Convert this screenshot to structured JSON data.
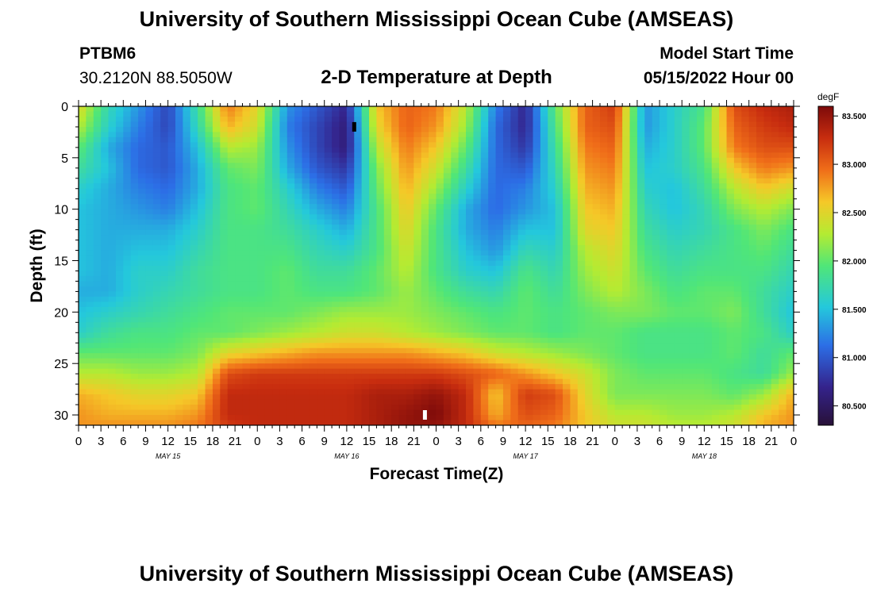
{
  "header": {
    "title": "University of Southern Mississippi Ocean Cube (AMSEAS)",
    "station": "PTBM6",
    "coords": "30.2120N  88.5050W",
    "subtitle": "2-D Temperature at Depth",
    "model_start_label": "Model Start Time",
    "model_start_value": "05/15/2022 Hour 00"
  },
  "footer": {
    "title": "University of Southern Mississippi Ocean Cube (AMSEAS)"
  },
  "chart_data": {
    "type": "heatmap",
    "title": "2-D Temperature at Depth",
    "xlabel": "Forecast Time(Z)",
    "ylabel": "Depth (ft)",
    "xlim": [
      0,
      96
    ],
    "ylim": [
      31,
      0
    ],
    "x_ticks": [
      0,
      3,
      6,
      9,
      12,
      15,
      18,
      21,
      24,
      27,
      30,
      33,
      36,
      39,
      42,
      45,
      48,
      51,
      54,
      57,
      60,
      63,
      66,
      69,
      72,
      75,
      78,
      81,
      84,
      87,
      90,
      93,
      96
    ],
    "x_tick_labels": [
      "0",
      "3",
      "6",
      "9",
      "12",
      "15",
      "18",
      "21",
      "0",
      "3",
      "6",
      "9",
      "12",
      "15",
      "18",
      "21",
      "0",
      "3",
      "6",
      "9",
      "12",
      "15",
      "18",
      "21",
      "0",
      "3",
      "6",
      "9",
      "12",
      "15",
      "18",
      "21",
      "0"
    ],
    "date_labels": [
      {
        "hour": 12,
        "text": "MAY 15"
      },
      {
        "hour": 36,
        "text": "MAY 16"
      },
      {
        "hour": 60,
        "text": "MAY 17"
      },
      {
        "hour": 84,
        "text": "MAY 18"
      }
    ],
    "y_ticks": [
      0,
      5,
      10,
      15,
      20,
      25,
      30
    ],
    "colorbar": {
      "unit": "degF",
      "range": [
        80.3,
        83.6
      ],
      "ticks": [
        83.5,
        83.0,
        82.5,
        82.0,
        81.5,
        81.0,
        80.5
      ],
      "tick_labels": [
        "83.500",
        "83.000",
        "82.500",
        "82.000",
        "81.500",
        "81.000",
        "80.500"
      ]
    },
    "markers": [
      {
        "hour": 37,
        "depth": 2,
        "color": "#000000"
      },
      {
        "hour": 46.5,
        "depth": 30,
        "color": "#ffffff"
      }
    ],
    "depth_levels_ft": [
      0,
      2,
      4,
      6,
      8,
      10,
      12,
      14,
      16,
      18,
      20,
      22,
      24,
      26,
      28,
      30,
      31
    ],
    "hours": [
      0,
      4,
      8,
      12,
      16,
      20,
      24,
      28,
      32,
      36,
      40,
      44,
      48,
      52,
      56,
      60,
      64,
      68,
      72,
      76,
      80,
      84,
      88,
      92,
      96
    ],
    "temperature_degF": [
      [
        82.5,
        81.7,
        81.3,
        80.9,
        81.8,
        82.9,
        82.5,
        81.3,
        81.0,
        80.7,
        82.6,
        83.0,
        82.9,
        82.3,
        81.2,
        80.7,
        82.0,
        83.0,
        83.2,
        81.3,
        81.6,
        81.9,
        83.1,
        83.3,
        83.4
      ],
      [
        82.3,
        81.6,
        81.2,
        80.9,
        81.7,
        82.7,
        82.4,
        81.2,
        80.9,
        80.6,
        82.5,
        83.0,
        82.8,
        82.2,
        81.1,
        80.7,
        81.9,
        83.0,
        83.1,
        81.3,
        81.6,
        82.0,
        83.0,
        83.2,
        83.3
      ],
      [
        82.0,
        81.4,
        81.1,
        81.0,
        81.5,
        82.3,
        82.2,
        81.3,
        80.9,
        80.6,
        82.3,
        82.9,
        82.6,
        82.0,
        81.1,
        80.8,
        81.8,
        82.9,
        83.0,
        81.4,
        81.6,
        82.0,
        82.9,
        83.1,
        83.1
      ],
      [
        81.8,
        81.5,
        81.1,
        81.0,
        81.4,
        82.0,
        82.1,
        81.4,
        81.0,
        80.8,
        82.1,
        82.8,
        82.4,
        81.8,
        81.1,
        81.0,
        81.7,
        82.8,
        82.9,
        81.5,
        81.6,
        81.9,
        82.6,
        82.9,
        82.8
      ],
      [
        81.6,
        81.4,
        81.2,
        81.1,
        81.4,
        81.9,
        82.0,
        81.6,
        81.2,
        81.0,
        82.0,
        82.7,
        82.2,
        81.6,
        81.1,
        81.2,
        81.6,
        82.7,
        82.8,
        81.6,
        81.5,
        81.8,
        82.3,
        82.6,
        82.4
      ],
      [
        81.5,
        81.4,
        81.3,
        81.2,
        81.5,
        81.9,
        82.0,
        81.7,
        81.4,
        81.2,
        81.9,
        82.6,
        82.0,
        81.4,
        81.1,
        81.3,
        81.5,
        82.6,
        82.7,
        81.7,
        81.5,
        81.7,
        82.1,
        82.3,
        82.1
      ],
      [
        81.5,
        81.4,
        81.4,
        81.4,
        81.6,
        81.9,
        81.9,
        81.8,
        81.6,
        81.4,
        81.9,
        82.5,
        81.9,
        81.4,
        81.2,
        81.5,
        81.5,
        82.5,
        82.6,
        81.8,
        81.6,
        81.7,
        81.9,
        82.1,
        81.9
      ],
      [
        81.5,
        81.4,
        81.5,
        81.5,
        81.7,
        81.9,
        81.9,
        81.9,
        81.7,
        81.6,
        81.9,
        82.4,
        81.9,
        81.5,
        81.3,
        81.7,
        81.6,
        82.3,
        82.5,
        81.9,
        81.7,
        81.8,
        81.9,
        82.0,
        81.8
      ],
      [
        81.5,
        81.4,
        81.6,
        81.6,
        81.8,
        81.9,
        81.9,
        82.0,
        81.8,
        81.8,
        82.0,
        82.3,
        81.9,
        81.6,
        81.5,
        81.9,
        81.7,
        82.2,
        82.4,
        82.0,
        81.8,
        81.9,
        81.9,
        81.9,
        81.7
      ],
      [
        81.4,
        81.4,
        81.6,
        81.7,
        81.8,
        81.9,
        81.9,
        82.0,
        81.9,
        81.9,
        82.0,
        82.2,
        82.0,
        81.8,
        81.7,
        82.0,
        81.8,
        82.1,
        82.3,
        82.1,
        81.9,
        82.0,
        82.0,
        81.8,
        81.6
      ],
      [
        81.5,
        81.6,
        81.7,
        81.8,
        81.9,
        82.0,
        82.0,
        82.0,
        82.1,
        82.2,
        82.2,
        82.2,
        82.1,
        82.0,
        81.9,
        82.0,
        81.9,
        82.0,
        82.1,
        82.1,
        82.0,
        82.0,
        82.1,
        81.8,
        81.5
      ],
      [
        81.6,
        81.8,
        81.9,
        81.9,
        82.0,
        82.0,
        82.1,
        82.2,
        82.3,
        82.4,
        82.4,
        82.3,
        82.2,
        82.1,
        82.0,
        82.0,
        81.9,
        82.0,
        82.0,
        81.9,
        81.9,
        81.9,
        82.0,
        81.9,
        81.6
      ],
      [
        82.0,
        82.0,
        82.0,
        82.0,
        82.1,
        82.5,
        82.6,
        82.7,
        82.8,
        82.8,
        82.8,
        82.8,
        82.7,
        82.6,
        82.4,
        82.3,
        82.2,
        82.1,
        82.0,
        81.9,
        81.9,
        81.9,
        82.0,
        81.8,
        82.0
      ],
      [
        82.3,
        82.3,
        82.2,
        82.2,
        82.3,
        83.1,
        83.2,
        83.2,
        83.2,
        83.2,
        83.2,
        83.2,
        83.2,
        83.1,
        83.0,
        82.8,
        82.6,
        82.4,
        82.1,
        82.0,
        82.0,
        82.0,
        81.9,
        81.8,
        82.2
      ],
      [
        82.7,
        82.6,
        82.5,
        82.5,
        82.6,
        83.3,
        83.3,
        83.3,
        83.3,
        83.3,
        83.4,
        83.4,
        83.5,
        83.3,
        82.6,
        83.2,
        83.1,
        82.5,
        82.1,
        82.1,
        82.1,
        82.1,
        82.0,
        82.2,
        82.7
      ],
      [
        82.8,
        82.7,
        82.7,
        82.7,
        82.8,
        83.3,
        83.3,
        83.3,
        83.3,
        83.3,
        83.4,
        83.5,
        83.6,
        83.3,
        82.7,
        83.1,
        83.0,
        82.6,
        82.3,
        82.3,
        82.2,
        82.2,
        82.3,
        82.6,
        82.8
      ],
      [
        82.8,
        82.8,
        82.8,
        82.8,
        82.9,
        83.2,
        83.3,
        83.3,
        83.3,
        83.3,
        83.4,
        83.5,
        83.5,
        83.3,
        82.9,
        83.0,
        82.9,
        82.6,
        82.4,
        82.4,
        82.3,
        82.3,
        82.4,
        82.7,
        82.8
      ]
    ]
  }
}
